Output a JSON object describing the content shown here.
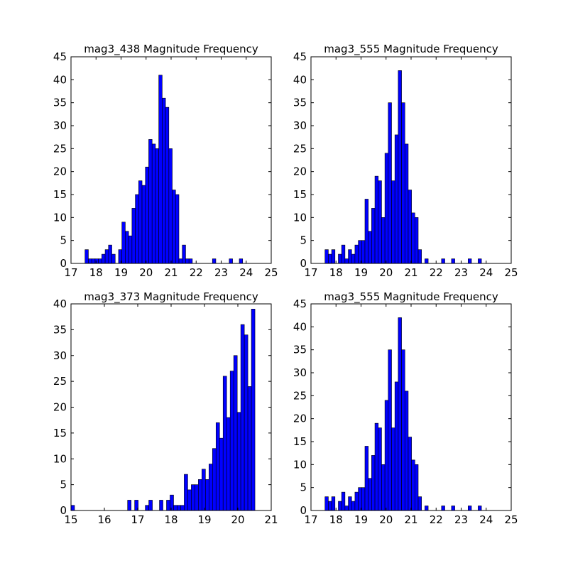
{
  "colors": {
    "bar_fill": "#0000ff",
    "bar_edge": "#000000",
    "background": "#ffffff"
  },
  "chart_data": [
    {
      "type": "bar",
      "title": "mag3_438 Magnitude Frequency",
      "xlim": [
        17,
        25
      ],
      "ylim": [
        0,
        45
      ],
      "xticks": [
        "17",
        "18",
        "19",
        "20",
        "21",
        "22",
        "23",
        "24",
        "25"
      ],
      "yticks": [
        "0",
        "5",
        "10",
        "15",
        "20",
        "25",
        "30",
        "35",
        "40",
        "45"
      ],
      "bin_start": 17.56,
      "bin_width": 0.134,
      "values": [
        3,
        1,
        1,
        1,
        1,
        2,
        3,
        4,
        2,
        0,
        3,
        9,
        7,
        6,
        12,
        15,
        18,
        17,
        21,
        27,
        26,
        25,
        41,
        36,
        34,
        25,
        16,
        15,
        1,
        4,
        1,
        1,
        0,
        0,
        0,
        0,
        0,
        0,
        1,
        0,
        0,
        0,
        0,
        1,
        0,
        0,
        1,
        0,
        0,
        0
      ]
    },
    {
      "type": "bar",
      "title": "mag3_555 Magnitude Frequency",
      "xlim": [
        17,
        25
      ],
      "ylim": [
        0,
        45
      ],
      "xticks": [
        "17",
        "18",
        "19",
        "20",
        "21",
        "22",
        "23",
        "24",
        "25"
      ],
      "yticks": [
        "0",
        "5",
        "10",
        "15",
        "20",
        "25",
        "30",
        "35",
        "40",
        "45"
      ],
      "bin_start": 17.56,
      "bin_width": 0.133,
      "values": [
        3,
        2,
        3,
        0,
        2,
        4,
        1,
        3,
        2,
        4,
        5,
        5,
        14,
        7,
        12,
        19,
        18,
        10,
        24,
        35,
        18,
        28,
        42,
        35,
        26,
        16,
        11,
        10,
        3,
        0,
        1,
        0,
        0,
        0,
        0,
        1,
        0,
        0,
        1,
        0,
        0,
        0,
        0,
        1,
        0,
        0,
        1,
        0,
        0,
        0
      ]
    },
    {
      "type": "bar",
      "title": "mag3_373 Magnitude Frequency",
      "xlim": [
        15,
        21
      ],
      "ylim": [
        0,
        40
      ],
      "xticks": [
        "15",
        "16",
        "17",
        "18",
        "19",
        "20",
        "21"
      ],
      "yticks": [
        "0",
        "5",
        "10",
        "15",
        "20",
        "25",
        "30",
        "35",
        "40"
      ],
      "bin_start": 15.0,
      "bin_width": 0.106,
      "values": [
        1,
        0,
        0,
        0,
        0,
        0,
        0,
        0,
        0,
        0,
        0,
        0,
        0,
        0,
        0,
        0,
        2,
        0,
        2,
        0,
        0,
        1,
        2,
        0,
        0,
        2,
        0,
        2,
        3,
        1,
        1,
        1,
        7,
        4,
        5,
        5,
        6,
        8,
        6,
        9,
        12,
        17,
        14,
        26,
        18,
        27,
        30,
        19,
        36,
        34,
        24,
        39
      ]
    },
    {
      "type": "bar",
      "title": "mag3_555 Magnitude Frequency",
      "xlim": [
        17,
        25
      ],
      "ylim": [
        0,
        45
      ],
      "xticks": [
        "17",
        "18",
        "19",
        "20",
        "21",
        "22",
        "23",
        "24",
        "25"
      ],
      "yticks": [
        "0",
        "5",
        "10",
        "15",
        "20",
        "25",
        "30",
        "35",
        "40",
        "45"
      ],
      "bin_start": 17.56,
      "bin_width": 0.133,
      "values": [
        3,
        2,
        3,
        0,
        2,
        4,
        1,
        3,
        2,
        4,
        5,
        5,
        14,
        7,
        12,
        19,
        18,
        10,
        24,
        35,
        18,
        28,
        42,
        35,
        26,
        16,
        11,
        10,
        3,
        0,
        1,
        0,
        0,
        0,
        0,
        1,
        0,
        0,
        1,
        0,
        0,
        0,
        0,
        1,
        0,
        0,
        1,
        0,
        0,
        0
      ]
    }
  ]
}
